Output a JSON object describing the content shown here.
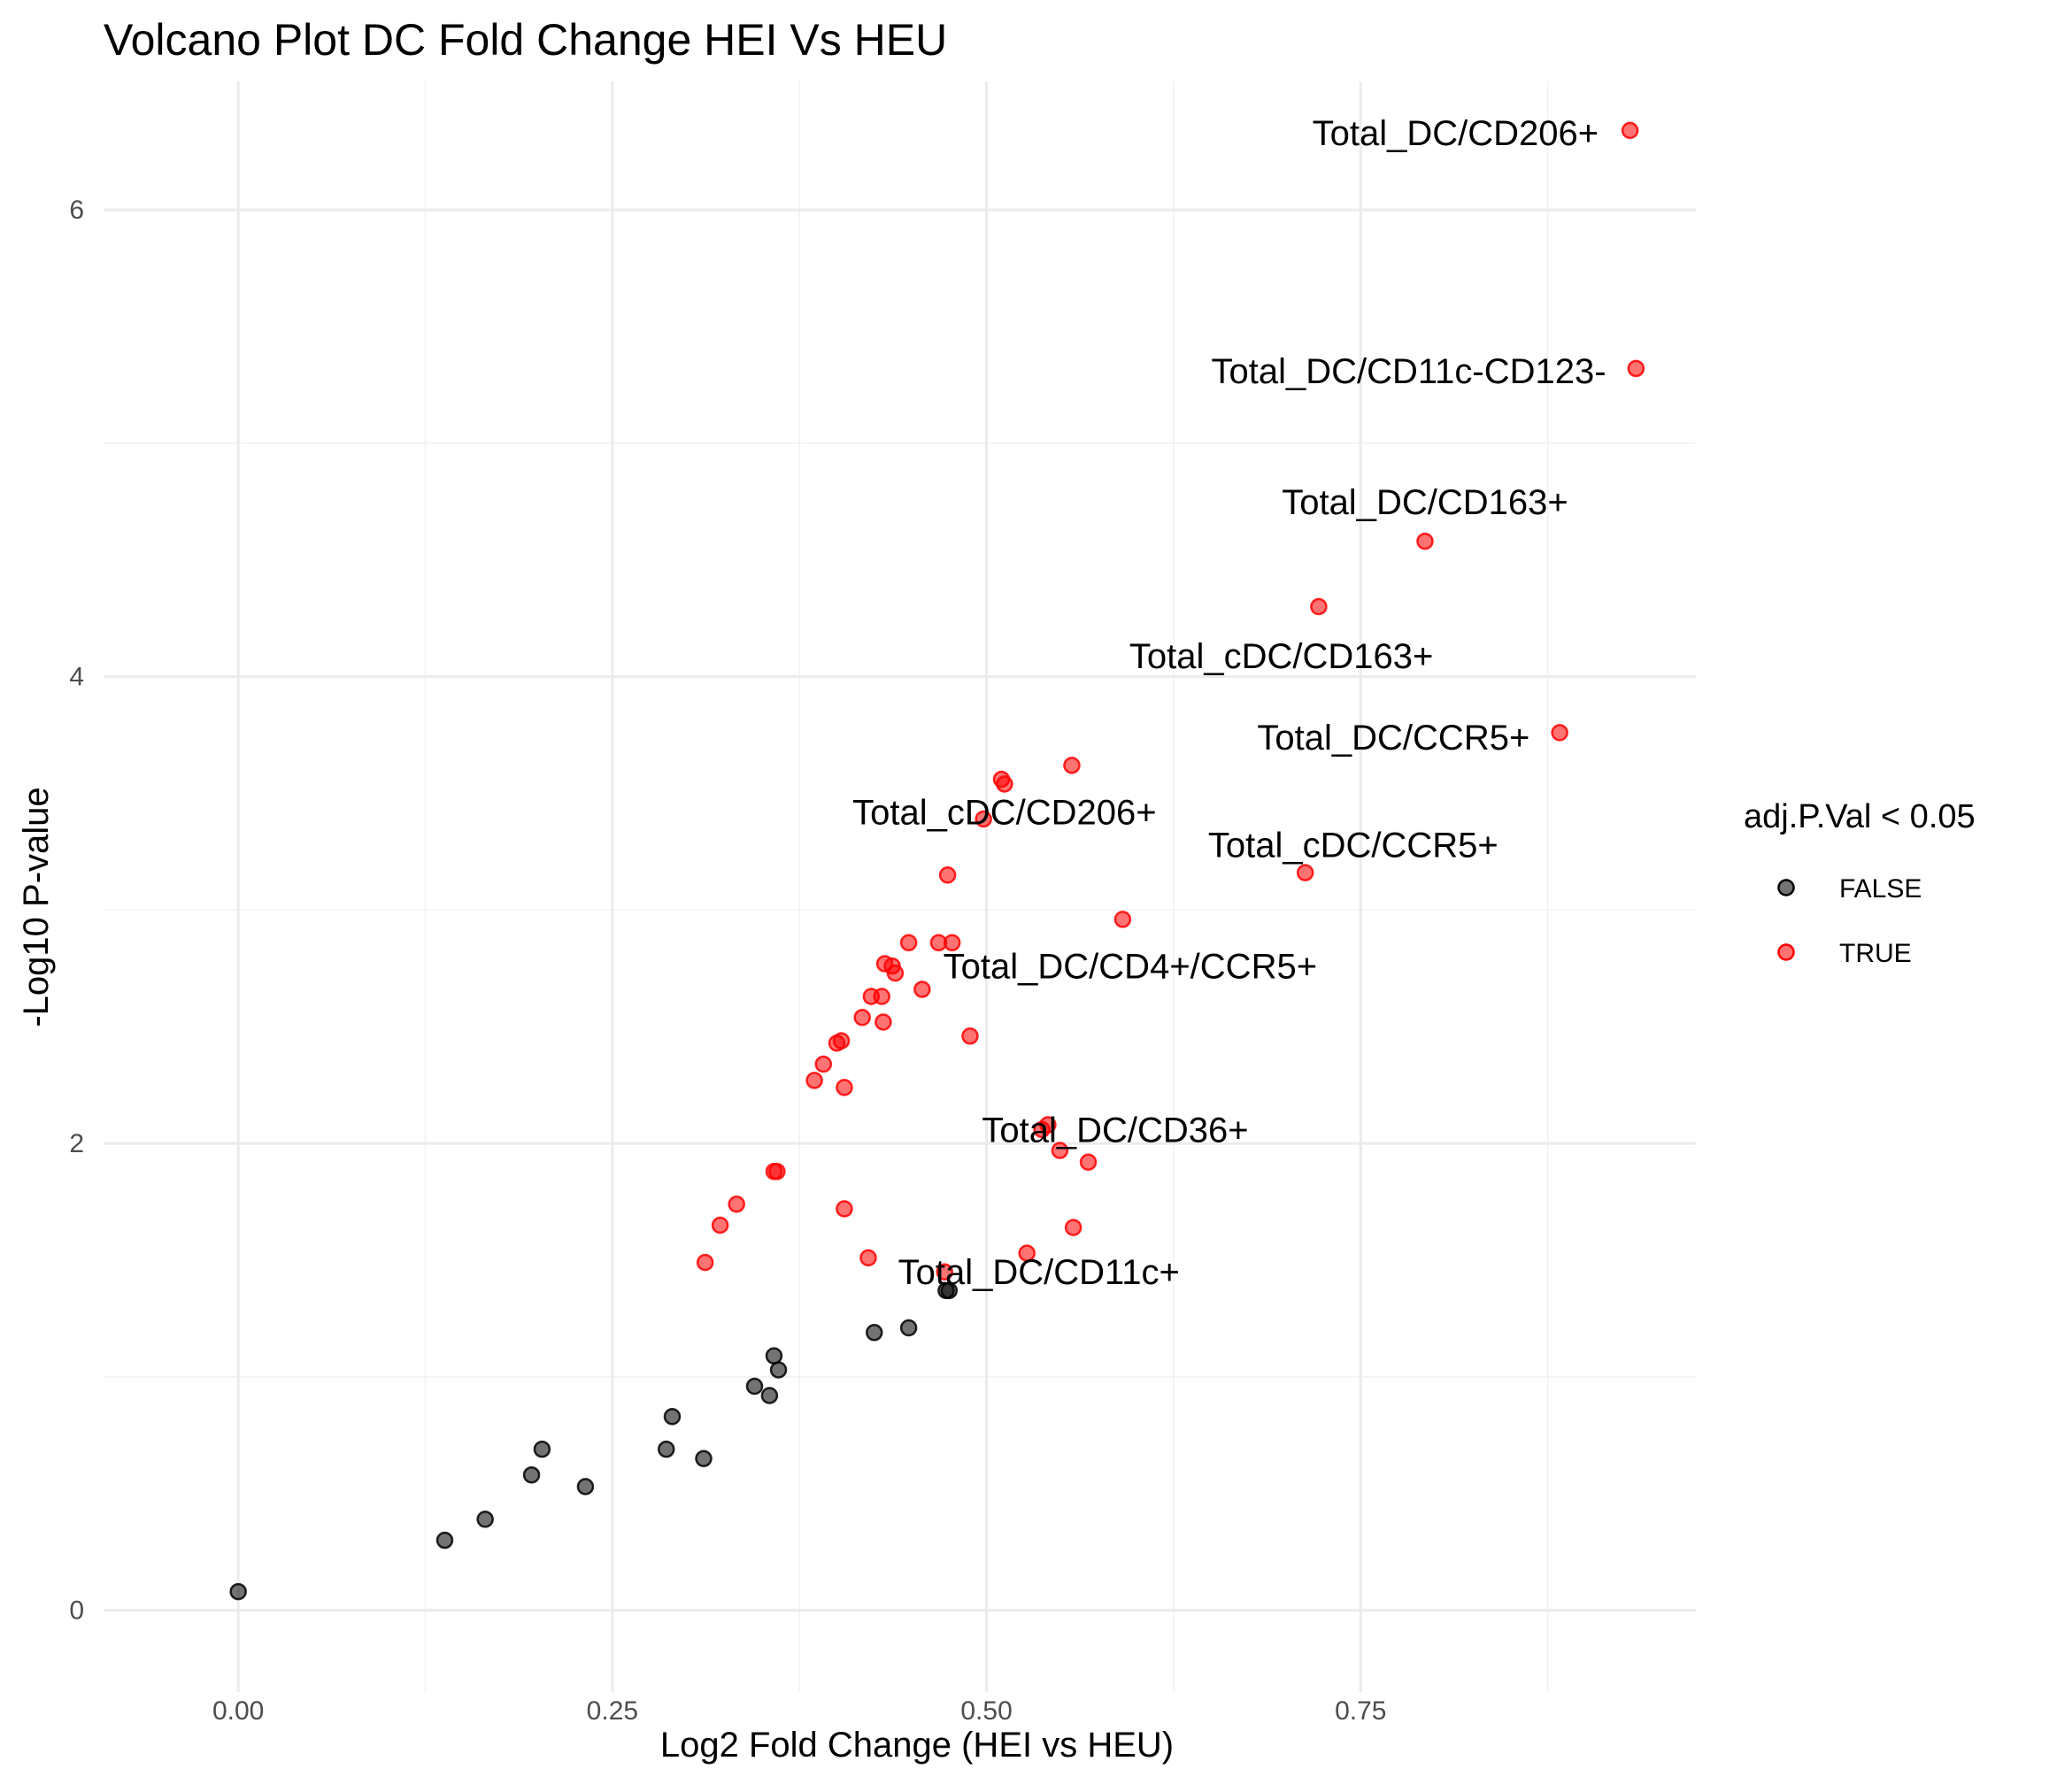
{
  "chart_data": {
    "type": "scatter",
    "title": "Volcano Plot DC Fold Change HEI Vs HEU",
    "xlabel": "Log2 Fold Change (HEI vs HEU)",
    "ylabel": "-Log10 P-value",
    "xlim": [
      -0.09,
      0.974
    ],
    "ylim": [
      -0.35,
      6.55
    ],
    "xticks": [
      0.0,
      0.25,
      0.5,
      0.75
    ],
    "xtick_labels": [
      "0.00",
      "0.25",
      "0.50",
      "0.75"
    ],
    "yticks": [
      0,
      2,
      4,
      6
    ],
    "ytick_labels": [
      "0",
      "2",
      "4",
      "6"
    ],
    "grid": true,
    "legend": {
      "title": "adj.P.Val < 0.05",
      "position": "right",
      "entries": [
        {
          "label": "FALSE",
          "color": "#000000"
        },
        {
          "label": "TRUE",
          "color": "#ff0000"
        }
      ]
    },
    "series": [
      {
        "name": "FALSE",
        "color": "#000000",
        "points": [
          [
            0.0,
            0.08
          ],
          [
            0.138,
            0.3
          ],
          [
            0.165,
            0.39
          ],
          [
            0.196,
            0.58
          ],
          [
            0.203,
            0.69
          ],
          [
            0.232,
            0.53
          ],
          [
            0.286,
            0.69
          ],
          [
            0.29,
            0.83
          ],
          [
            0.311,
            0.65
          ],
          [
            0.345,
            0.96
          ],
          [
            0.355,
            0.92
          ],
          [
            0.358,
            1.09
          ],
          [
            0.361,
            1.03
          ],
          [
            0.425,
            1.19
          ],
          [
            0.448,
            1.21
          ],
          [
            0.473,
            1.37
          ],
          [
            0.475,
            1.37
          ]
        ]
      },
      {
        "name": "TRUE",
        "color": "#ff0000",
        "points": [
          [
            0.93,
            6.34
          ],
          [
            0.934,
            5.32
          ],
          [
            0.793,
            4.58
          ],
          [
            0.722,
            4.3
          ],
          [
            0.883,
            3.76
          ],
          [
            0.557,
            3.62
          ],
          [
            0.51,
            3.56
          ],
          [
            0.512,
            3.54
          ],
          [
            0.498,
            3.39
          ],
          [
            0.474,
            3.15
          ],
          [
            0.713,
            3.16
          ],
          [
            0.591,
            2.96
          ],
          [
            0.448,
            2.86
          ],
          [
            0.468,
            2.86
          ],
          [
            0.477,
            2.86
          ],
          [
            0.432,
            2.77
          ],
          [
            0.437,
            2.76
          ],
          [
            0.439,
            2.73
          ],
          [
            0.457,
            2.66
          ],
          [
            0.423,
            2.63
          ],
          [
            0.43,
            2.63
          ],
          [
            0.417,
            2.54
          ],
          [
            0.431,
            2.52
          ],
          [
            0.489,
            2.46
          ],
          [
            0.4,
            2.43
          ],
          [
            0.403,
            2.44
          ],
          [
            0.391,
            2.34
          ],
          [
            0.385,
            2.27
          ],
          [
            0.405,
            2.24
          ],
          [
            0.537,
            2.06
          ],
          [
            0.541,
            2.08
          ],
          [
            0.549,
            1.97
          ],
          [
            0.568,
            1.92
          ],
          [
            0.358,
            1.88
          ],
          [
            0.36,
            1.88
          ],
          [
            0.333,
            1.74
          ],
          [
            0.405,
            1.72
          ],
          [
            0.322,
            1.65
          ],
          [
            0.558,
            1.64
          ],
          [
            0.527,
            1.53
          ],
          [
            0.421,
            1.51
          ],
          [
            0.312,
            1.49
          ],
          [
            0.472,
            1.45
          ]
        ]
      }
    ],
    "annotations": [
      {
        "text": "Total_DC/CD206+",
        "x": 0.909,
        "y": 6.33,
        "anchor": "end"
      },
      {
        "text": "Total_DC/CD11c-CD123-",
        "x": 0.914,
        "y": 5.31,
        "anchor": "end"
      },
      {
        "text": "Total_DC/CD163+",
        "x": 0.793,
        "y": 4.75,
        "anchor": "middle"
      },
      {
        "text": "Total_cDC/CD163+",
        "x": 0.697,
        "y": 4.09,
        "anchor": "middle"
      },
      {
        "text": "Total_DC/CCR5+",
        "x": 0.863,
        "y": 3.74,
        "anchor": "end"
      },
      {
        "text": "Total_cDC/CD206+",
        "x": 0.512,
        "y": 3.42,
        "anchor": "middle"
      },
      {
        "text": "Total_cDC/CCR5+",
        "x": 0.745,
        "y": 3.28,
        "anchor": "middle"
      },
      {
        "text": "Total_DC/CD4+/CCR5+",
        "x": 0.596,
        "y": 2.76,
        "anchor": "middle"
      },
      {
        "text": "Total_DC/CD36+",
        "x": 0.586,
        "y": 2.06,
        "anchor": "middle"
      },
      {
        "text": "Total_DC/CD11c+",
        "x": 0.535,
        "y": 1.45,
        "anchor": "middle"
      }
    ]
  }
}
